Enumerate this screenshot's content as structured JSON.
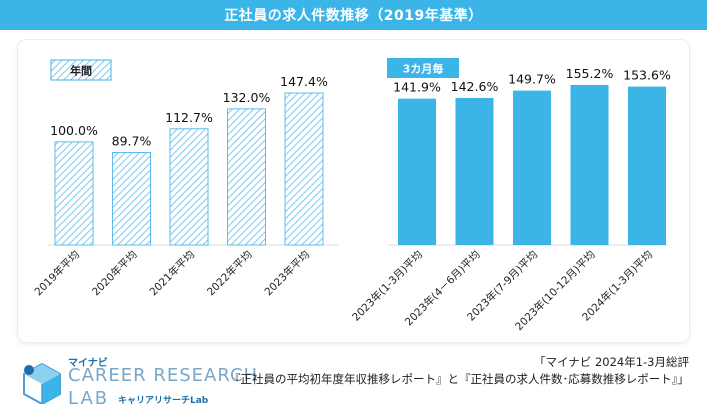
{
  "header": {
    "title": "正社員の求人件数推移（2019年基準）"
  },
  "chart_data": {
    "type": "bar",
    "title": "正社員の求人件数推移（2019年基準）",
    "groups": [
      {
        "label": "年間",
        "style": "hatched"
      },
      {
        "label": "3カ月毎",
        "style": "solid"
      }
    ],
    "series": [
      {
        "name": "年間",
        "categories": [
          "2019年平均",
          "2020年平均",
          "2021年平均",
          "2022年平均",
          "2023年平均"
        ],
        "values": [
          100.0,
          89.7,
          112.7,
          132.0,
          147.4
        ],
        "labels": [
          "100.0%",
          "89.7%",
          "112.7%",
          "132.0%",
          "147.4%"
        ]
      },
      {
        "name": "3カ月毎",
        "categories": [
          "2023年(1-3月)平均",
          "2023年(4－6月)平均",
          "2023年(7-9月)平均",
          "2023年(10-12月)平均",
          "2024年(1-3月)平均"
        ],
        "values": [
          141.9,
          142.6,
          149.7,
          155.2,
          153.6
        ],
        "labels": [
          "141.9%",
          "142.6%",
          "149.7%",
          "155.2%",
          "153.6%"
        ]
      }
    ],
    "ylim": [
      0,
      160
    ],
    "colors": {
      "bar": "#3bb4e8",
      "hatch": "#8fd0ee",
      "label_bg": "#3bb4e8"
    }
  },
  "brand": {
    "top": "マイナビ",
    "main": "CAREER RESEARCH",
    "lab": "LAB",
    "sub": "キャリアリサーチLab"
  },
  "source": {
    "line1": "「マイナビ 2024年1-3月総評",
    "line2": "『正社員の平均初年度年収推移レポート』と『正社員の求人件数･応募数推移レポート』」"
  }
}
